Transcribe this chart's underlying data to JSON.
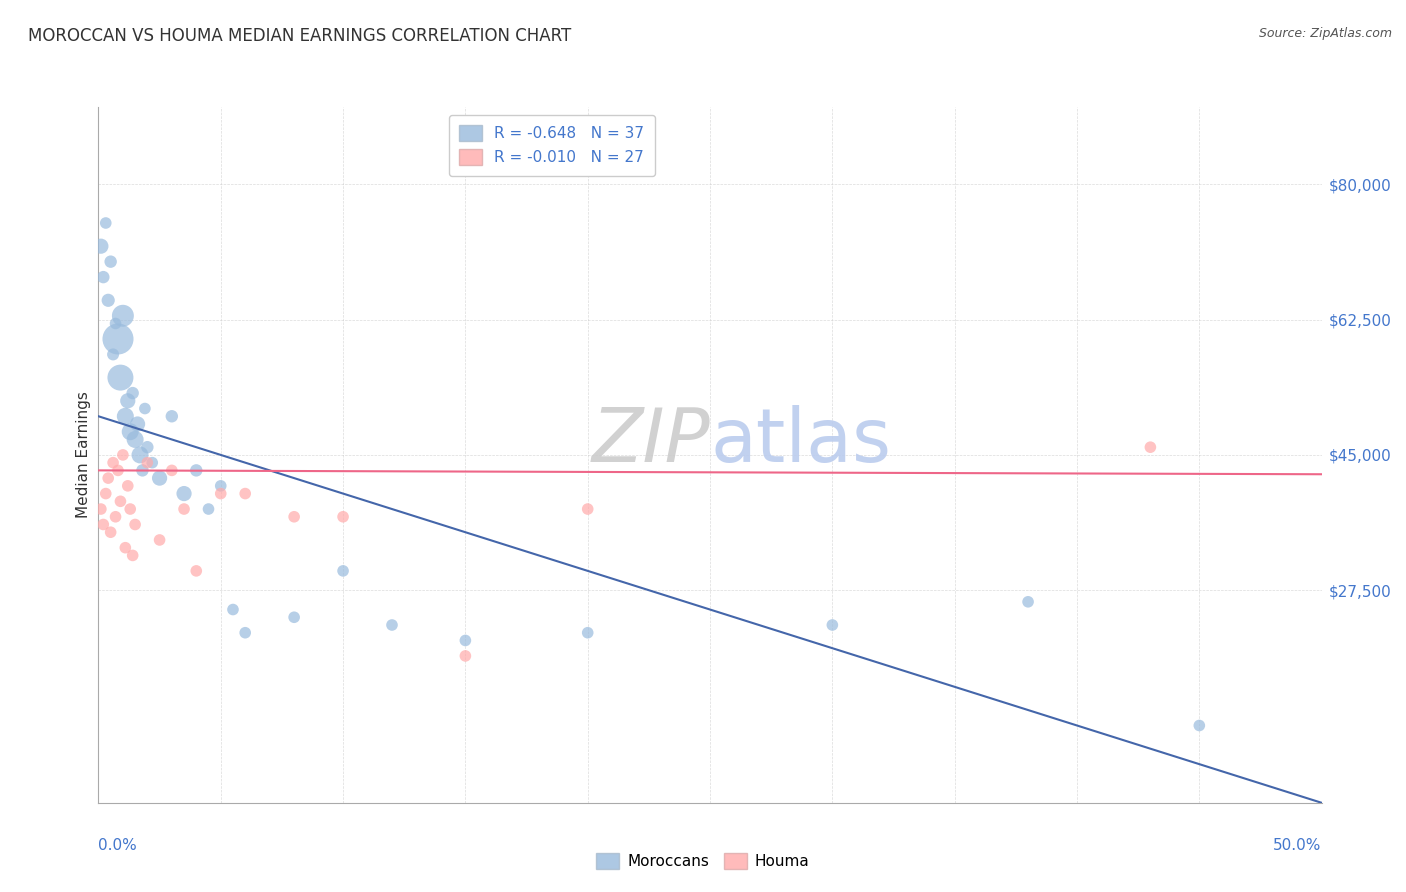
{
  "title": "MOROCCAN VS HOUMA MEDIAN EARNINGS CORRELATION CHART",
  "source": "Source: ZipAtlas.com",
  "ylabel": "Median Earnings",
  "ytick_labels": [
    "$80,000",
    "$62,500",
    "$45,000",
    "$27,500"
  ],
  "ytick_values": [
    80000,
    62500,
    45000,
    27500
  ],
  "ylim": [
    0,
    90000
  ],
  "xlim": [
    0.0,
    0.5
  ],
  "xtick_labels": [
    "0.0%",
    "50.0%"
  ],
  "xtick_positions": [
    0.0,
    0.5
  ],
  "legend1_r": "R = -0.648",
  "legend1_n": "N = 37",
  "legend2_r": "R = -0.010",
  "legend2_n": "N = 27",
  "legend_label1": "Moroccans",
  "legend_label2": "Houma",
  "blue_color": "#99BBDD",
  "pink_color": "#FFAAAA",
  "line_blue": "#4466AA",
  "line_pink": "#EE6688",
  "blue_line_x0": 0.0,
  "blue_line_y0": 50000,
  "blue_line_x1": 0.5,
  "blue_line_y1": 0,
  "pink_line_x0": 0.0,
  "pink_line_y0": 43000,
  "pink_line_x1": 0.5,
  "pink_line_y1": 42500,
  "moroccan_x": [
    0.001,
    0.002,
    0.003,
    0.004,
    0.005,
    0.006,
    0.007,
    0.008,
    0.009,
    0.01,
    0.011,
    0.012,
    0.013,
    0.014,
    0.015,
    0.016,
    0.017,
    0.018,
    0.019,
    0.02,
    0.022,
    0.025,
    0.03,
    0.035,
    0.04,
    0.045,
    0.05,
    0.055,
    0.06,
    0.08,
    0.1,
    0.12,
    0.15,
    0.2,
    0.3,
    0.38,
    0.45
  ],
  "moroccan_y": [
    72000,
    68000,
    75000,
    65000,
    70000,
    58000,
    62000,
    60000,
    55000,
    63000,
    50000,
    52000,
    48000,
    53000,
    47000,
    49000,
    45000,
    43000,
    51000,
    46000,
    44000,
    42000,
    50000,
    40000,
    43000,
    38000,
    41000,
    25000,
    22000,
    24000,
    30000,
    23000,
    21000,
    22000,
    23000,
    26000,
    10000
  ],
  "moroccan_size": [
    120,
    80,
    70,
    90,
    80,
    75,
    70,
    500,
    350,
    250,
    150,
    120,
    150,
    80,
    150,
    120,
    150,
    80,
    70,
    80,
    70,
    120,
    80,
    120,
    80,
    70,
    70,
    70,
    70,
    70,
    70,
    70,
    70,
    70,
    70,
    70,
    70
  ],
  "houma_x": [
    0.001,
    0.002,
    0.003,
    0.004,
    0.005,
    0.006,
    0.007,
    0.008,
    0.009,
    0.01,
    0.011,
    0.012,
    0.013,
    0.014,
    0.015,
    0.02,
    0.025,
    0.03,
    0.035,
    0.04,
    0.05,
    0.06,
    0.08,
    0.1,
    0.15,
    0.2,
    0.43
  ],
  "houma_y": [
    38000,
    36000,
    40000,
    42000,
    35000,
    44000,
    37000,
    43000,
    39000,
    45000,
    33000,
    41000,
    38000,
    32000,
    36000,
    44000,
    34000,
    43000,
    38000,
    30000,
    40000,
    40000,
    37000,
    37000,
    19000,
    38000,
    46000
  ],
  "houma_size": [
    70,
    70,
    70,
    70,
    70,
    70,
    70,
    70,
    70,
    70,
    70,
    70,
    70,
    70,
    70,
    70,
    70,
    70,
    70,
    70,
    70,
    70,
    70,
    70,
    70,
    70,
    70
  ],
  "grid_color": "#CCCCCC",
  "title_color": "#333333",
  "ytick_color": "#4477CC",
  "xtick_color": "#4477CC"
}
